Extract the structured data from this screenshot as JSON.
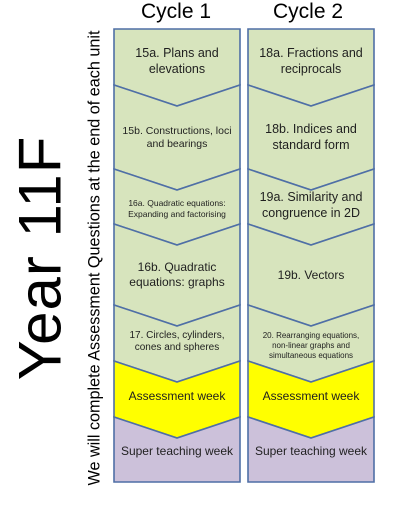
{
  "title": "Year 11F",
  "subtitle": "We will complete Assessment Questions at the end of each unit",
  "colors": {
    "unit_fill": "#d7e4bd",
    "assessment_fill": "#ffff00",
    "super_fill": "#ccc1da",
    "stroke": "#4f6fa6"
  },
  "cycles": [
    {
      "header": "Cycle 1",
      "units": [
        {
          "label": "15a. Plans and elevations",
          "kind": "unit"
        },
        {
          "label": "15b. Constructions, loci and bearings",
          "kind": "unit"
        },
        {
          "label": "16a. Quadratic equations: Expanding and factorising",
          "kind": "unit"
        },
        {
          "label": "16b. Quadratic equations: graphs",
          "kind": "unit"
        },
        {
          "label": "17. Circles, cylinders, cones and spheres",
          "kind": "unit"
        },
        {
          "label": "Assessment week",
          "kind": "assessment"
        },
        {
          "label": "Super teaching week",
          "kind": "super"
        }
      ]
    },
    {
      "header": "Cycle 2",
      "units": [
        {
          "label": "18a. Fractions and reciprocals",
          "kind": "unit"
        },
        {
          "label": "18b. Indices and standard form",
          "kind": "unit"
        },
        {
          "label": "19a. Similarity and congruence in 2D",
          "kind": "unit"
        },
        {
          "label": "19b. Vectors",
          "kind": "unit"
        },
        {
          "label": "20. Rearranging equations, non-linear graphs and simultaneous equations",
          "kind": "unit"
        },
        {
          "label": "Assessment week",
          "kind": "assessment"
        },
        {
          "label": "Super teaching week",
          "kind": "super"
        }
      ]
    }
  ]
}
